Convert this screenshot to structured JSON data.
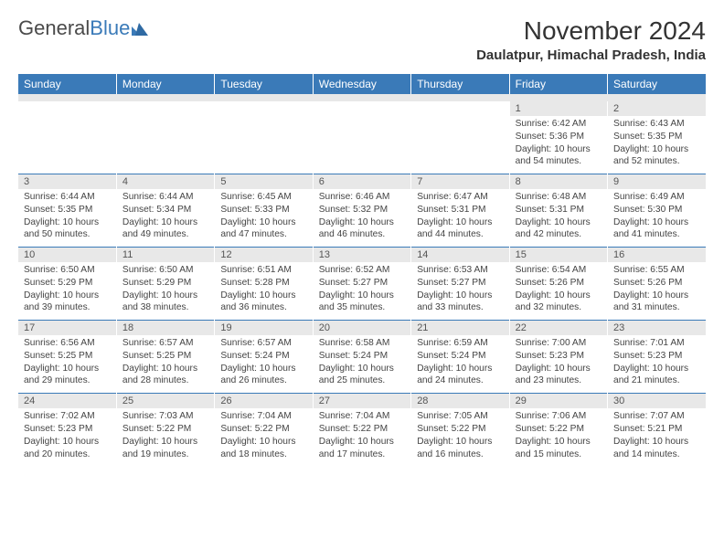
{
  "brand": {
    "part1": "General",
    "part2": "Blue"
  },
  "title": "November 2024",
  "location": "Daulatpur, Himachal Pradesh, India",
  "colors": {
    "header_bg": "#3a7ab8",
    "header_text": "#ffffff",
    "daynum_bg": "#e8e8e8",
    "border_top": "#3a7ab8",
    "body_text": "#444444",
    "page_bg": "#ffffff"
  },
  "typography": {
    "title_fontsize": 28,
    "location_fontsize": 15,
    "weekday_fontsize": 12,
    "body_fontsize": 10.2
  },
  "weekdays": [
    "Sunday",
    "Monday",
    "Tuesday",
    "Wednesday",
    "Thursday",
    "Friday",
    "Saturday"
  ],
  "weeks": [
    [
      null,
      null,
      null,
      null,
      null,
      {
        "n": "1",
        "sunrise": "Sunrise: 6:42 AM",
        "sunset": "Sunset: 5:36 PM",
        "daylight": "Daylight: 10 hours and 54 minutes."
      },
      {
        "n": "2",
        "sunrise": "Sunrise: 6:43 AM",
        "sunset": "Sunset: 5:35 PM",
        "daylight": "Daylight: 10 hours and 52 minutes."
      }
    ],
    [
      {
        "n": "3",
        "sunrise": "Sunrise: 6:44 AM",
        "sunset": "Sunset: 5:35 PM",
        "daylight": "Daylight: 10 hours and 50 minutes."
      },
      {
        "n": "4",
        "sunrise": "Sunrise: 6:44 AM",
        "sunset": "Sunset: 5:34 PM",
        "daylight": "Daylight: 10 hours and 49 minutes."
      },
      {
        "n": "5",
        "sunrise": "Sunrise: 6:45 AM",
        "sunset": "Sunset: 5:33 PM",
        "daylight": "Daylight: 10 hours and 47 minutes."
      },
      {
        "n": "6",
        "sunrise": "Sunrise: 6:46 AM",
        "sunset": "Sunset: 5:32 PM",
        "daylight": "Daylight: 10 hours and 46 minutes."
      },
      {
        "n": "7",
        "sunrise": "Sunrise: 6:47 AM",
        "sunset": "Sunset: 5:31 PM",
        "daylight": "Daylight: 10 hours and 44 minutes."
      },
      {
        "n": "8",
        "sunrise": "Sunrise: 6:48 AM",
        "sunset": "Sunset: 5:31 PM",
        "daylight": "Daylight: 10 hours and 42 minutes."
      },
      {
        "n": "9",
        "sunrise": "Sunrise: 6:49 AM",
        "sunset": "Sunset: 5:30 PM",
        "daylight": "Daylight: 10 hours and 41 minutes."
      }
    ],
    [
      {
        "n": "10",
        "sunrise": "Sunrise: 6:50 AM",
        "sunset": "Sunset: 5:29 PM",
        "daylight": "Daylight: 10 hours and 39 minutes."
      },
      {
        "n": "11",
        "sunrise": "Sunrise: 6:50 AM",
        "sunset": "Sunset: 5:29 PM",
        "daylight": "Daylight: 10 hours and 38 minutes."
      },
      {
        "n": "12",
        "sunrise": "Sunrise: 6:51 AM",
        "sunset": "Sunset: 5:28 PM",
        "daylight": "Daylight: 10 hours and 36 minutes."
      },
      {
        "n": "13",
        "sunrise": "Sunrise: 6:52 AM",
        "sunset": "Sunset: 5:27 PM",
        "daylight": "Daylight: 10 hours and 35 minutes."
      },
      {
        "n": "14",
        "sunrise": "Sunrise: 6:53 AM",
        "sunset": "Sunset: 5:27 PM",
        "daylight": "Daylight: 10 hours and 33 minutes."
      },
      {
        "n": "15",
        "sunrise": "Sunrise: 6:54 AM",
        "sunset": "Sunset: 5:26 PM",
        "daylight": "Daylight: 10 hours and 32 minutes."
      },
      {
        "n": "16",
        "sunrise": "Sunrise: 6:55 AM",
        "sunset": "Sunset: 5:26 PM",
        "daylight": "Daylight: 10 hours and 31 minutes."
      }
    ],
    [
      {
        "n": "17",
        "sunrise": "Sunrise: 6:56 AM",
        "sunset": "Sunset: 5:25 PM",
        "daylight": "Daylight: 10 hours and 29 minutes."
      },
      {
        "n": "18",
        "sunrise": "Sunrise: 6:57 AM",
        "sunset": "Sunset: 5:25 PM",
        "daylight": "Daylight: 10 hours and 28 minutes."
      },
      {
        "n": "19",
        "sunrise": "Sunrise: 6:57 AM",
        "sunset": "Sunset: 5:24 PM",
        "daylight": "Daylight: 10 hours and 26 minutes."
      },
      {
        "n": "20",
        "sunrise": "Sunrise: 6:58 AM",
        "sunset": "Sunset: 5:24 PM",
        "daylight": "Daylight: 10 hours and 25 minutes."
      },
      {
        "n": "21",
        "sunrise": "Sunrise: 6:59 AM",
        "sunset": "Sunset: 5:24 PM",
        "daylight": "Daylight: 10 hours and 24 minutes."
      },
      {
        "n": "22",
        "sunrise": "Sunrise: 7:00 AM",
        "sunset": "Sunset: 5:23 PM",
        "daylight": "Daylight: 10 hours and 23 minutes."
      },
      {
        "n": "23",
        "sunrise": "Sunrise: 7:01 AM",
        "sunset": "Sunset: 5:23 PM",
        "daylight": "Daylight: 10 hours and 21 minutes."
      }
    ],
    [
      {
        "n": "24",
        "sunrise": "Sunrise: 7:02 AM",
        "sunset": "Sunset: 5:23 PM",
        "daylight": "Daylight: 10 hours and 20 minutes."
      },
      {
        "n": "25",
        "sunrise": "Sunrise: 7:03 AM",
        "sunset": "Sunset: 5:22 PM",
        "daylight": "Daylight: 10 hours and 19 minutes."
      },
      {
        "n": "26",
        "sunrise": "Sunrise: 7:04 AM",
        "sunset": "Sunset: 5:22 PM",
        "daylight": "Daylight: 10 hours and 18 minutes."
      },
      {
        "n": "27",
        "sunrise": "Sunrise: 7:04 AM",
        "sunset": "Sunset: 5:22 PM",
        "daylight": "Daylight: 10 hours and 17 minutes."
      },
      {
        "n": "28",
        "sunrise": "Sunrise: 7:05 AM",
        "sunset": "Sunset: 5:22 PM",
        "daylight": "Daylight: 10 hours and 16 minutes."
      },
      {
        "n": "29",
        "sunrise": "Sunrise: 7:06 AM",
        "sunset": "Sunset: 5:22 PM",
        "daylight": "Daylight: 10 hours and 15 minutes."
      },
      {
        "n": "30",
        "sunrise": "Sunrise: 7:07 AM",
        "sunset": "Sunset: 5:21 PM",
        "daylight": "Daylight: 10 hours and 14 minutes."
      }
    ]
  ]
}
